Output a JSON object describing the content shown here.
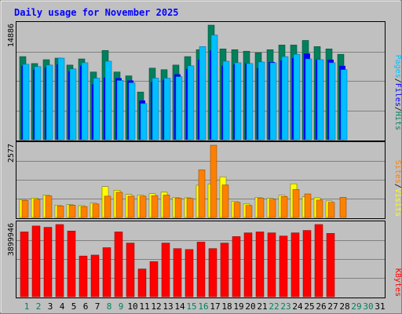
{
  "title": "Daily usage for November 2025",
  "colors": {
    "background": "#c0c0c0",
    "panel": "#c0c0c0",
    "grid": "#808080",
    "hits": "#00805c",
    "files": "#0000ff",
    "pages": "#00c0ff",
    "visits": "#ffff00",
    "sites": "#ff8000",
    "kbytes": "#ff0000",
    "title": "#0000ff",
    "weekday_label": "#000000",
    "weekend_label": "#00805c"
  },
  "legend_top": [
    {
      "text": "Pages",
      "color": "#00c0ff"
    },
    {
      "text": "/",
      "color": "#000000"
    },
    {
      "text": "Files",
      "color": "#0000ff"
    },
    {
      "text": "/",
      "color": "#000000"
    },
    {
      "text": "Hits",
      "color": "#00805c"
    }
  ],
  "legend_mid": [
    {
      "text": "Sites",
      "color": "#ff8000"
    },
    {
      "text": "/",
      "color": "#000000"
    },
    {
      "text": "Visits",
      "color": "#ffff00"
    }
  ],
  "legend_bottom": [
    {
      "text": "KBytes",
      "color": "#ff0000"
    }
  ],
  "chart_data": [
    {
      "type": "bar",
      "title": "Daily usage for November 2025",
      "categories": [
        "1",
        "2",
        "3",
        "4",
        "5",
        "6",
        "7",
        "8",
        "9",
        "10",
        "11",
        "12",
        "13",
        "14",
        "15",
        "16",
        "17",
        "18",
        "19",
        "20",
        "21",
        "22",
        "23",
        "24",
        "25",
        "26",
        "27",
        "28",
        "29",
        "30",
        "31"
      ],
      "weekend_days": [
        "1",
        "2",
        "8",
        "9",
        "15",
        "16",
        "22",
        "23",
        "29",
        "30"
      ],
      "ymax_label": "14886",
      "ylim": [
        0,
        14886
      ],
      "grid": true,
      "series": [
        {
          "name": "Hits",
          "values": [
            10800,
            9900,
            10400,
            10600,
            9700,
            10500,
            8800,
            11600,
            8800,
            8300,
            6200,
            9300,
            9100,
            9700,
            10800,
            11700,
            14886,
            11800,
            11700,
            11500,
            11300,
            11700,
            12300,
            12300,
            12900,
            12100,
            11800,
            11100,
            0,
            0,
            0
          ]
        },
        {
          "name": "Files",
          "values": [
            9600,
            9100,
            9400,
            9800,
            8900,
            9600,
            7200,
            8100,
            8000,
            7700,
            5100,
            7500,
            7800,
            8500,
            9200,
            10400,
            11600,
            9600,
            9800,
            9900,
            9300,
            10100,
            10300,
            10600,
            11200,
            10400,
            10400,
            9600,
            0,
            0,
            0
          ]
        },
        {
          "name": "Pages",
          "values": [
            9800,
            9500,
            9700,
            10600,
            9200,
            10000,
            8000,
            10200,
            7700,
            7400,
            4700,
            8000,
            8000,
            8200,
            9600,
            12100,
            13600,
            10200,
            10000,
            9900,
            10100,
            10000,
            10800,
            11100,
            10500,
            10400,
            10000,
            9100,
            0,
            0,
            0
          ]
        }
      ]
    },
    {
      "type": "bar",
      "categories": [
        "1",
        "2",
        "3",
        "4",
        "5",
        "6",
        "7",
        "8",
        "9",
        "10",
        "11",
        "12",
        "13",
        "14",
        "15",
        "16",
        "17",
        "18",
        "19",
        "20",
        "21",
        "22",
        "23",
        "24",
        "25",
        "26",
        "27",
        "28",
        "29",
        "30",
        "31"
      ],
      "ymax_label": "2577",
      "ylim": [
        0,
        2577
      ],
      "grid": true,
      "series": [
        {
          "name": "Visits",
          "values": [
            640,
            690,
            800,
            440,
            460,
            420,
            510,
            1100,
            970,
            820,
            800,
            850,
            900,
            720,
            700,
            1150,
            1200,
            1450,
            580,
            480,
            720,
            680,
            790,
            1200,
            740,
            700,
            590,
            0,
            0,
            0,
            0
          ]
        },
        {
          "name": "Sites",
          "values": [
            610,
            650,
            770,
            410,
            440,
            390,
            480,
            760,
            900,
            760,
            760,
            780,
            800,
            690,
            680,
            1700,
            2577,
            1160,
            540,
            430,
            690,
            650,
            750,
            1000,
            840,
            620,
            540,
            720,
            0,
            0,
            0
          ]
        }
      ]
    },
    {
      "type": "bar",
      "categories": [
        "1",
        "2",
        "3",
        "4",
        "5",
        "6",
        "7",
        "8",
        "9",
        "10",
        "11",
        "12",
        "13",
        "14",
        "15",
        "16",
        "17",
        "18",
        "19",
        "20",
        "21",
        "22",
        "23",
        "24",
        "25",
        "26",
        "27",
        "28",
        "29",
        "30",
        "31"
      ],
      "ymax_label": "3899946",
      "ylim": [
        0,
        3899946
      ],
      "grid": true,
      "series": [
        {
          "name": "KBytes",
          "values": [
            3500000,
            3820000,
            3750000,
            3899946,
            3550000,
            2200000,
            2250000,
            2650000,
            3500000,
            2900000,
            1500000,
            1900000,
            2900000,
            2600000,
            2550000,
            2950000,
            2600000,
            2900000,
            3250000,
            3450000,
            3500000,
            3450000,
            3280000,
            3450000,
            3580000,
            3900000,
            3420000,
            0,
            0,
            0,
            0
          ]
        }
      ]
    }
  ]
}
